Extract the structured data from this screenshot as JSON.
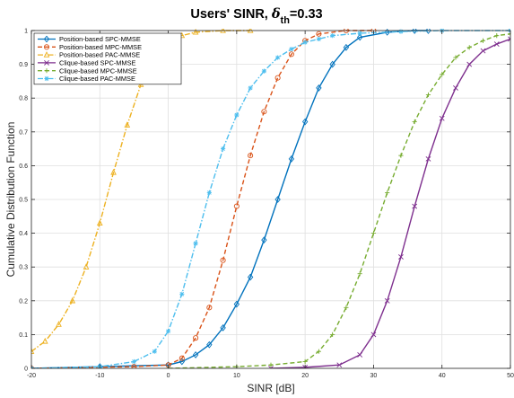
{
  "chart_data": {
    "type": "line",
    "title": {
      "main": "Users' SINR, ",
      "delta": "δ",
      "delta_sub": "th",
      "rest": "=0.33"
    },
    "xlabel": "SINR [dB]",
    "ylabel": "Cumulative Distribution Function",
    "xlim": [
      -20,
      50
    ],
    "ylim": [
      0,
      1
    ],
    "xticks": [
      -20,
      -10,
      0,
      10,
      20,
      30,
      40,
      50
    ],
    "yticks": [
      0,
      0.1,
      0.2,
      0.3,
      0.4,
      0.5,
      0.6,
      0.7,
      0.8,
      0.9,
      1
    ],
    "grid": true,
    "legend_position": "top-left",
    "series": [
      {
        "name": "Position-based SPC-MMSE",
        "color": "#0072BD",
        "dash": "solid",
        "marker": "diamond",
        "x": [
          -20,
          -10,
          0,
          2,
          4,
          6,
          8,
          10,
          12,
          14,
          16,
          18,
          20,
          22,
          24,
          26,
          28,
          32,
          36,
          38
        ],
        "y": [
          0.0,
          0.005,
          0.01,
          0.02,
          0.04,
          0.07,
          0.12,
          0.19,
          0.27,
          0.38,
          0.5,
          0.62,
          0.73,
          0.83,
          0.9,
          0.95,
          0.98,
          0.995,
          1.0,
          1.0
        ]
      },
      {
        "name": "Position-based MPC-MMSE",
        "color": "#D95319",
        "dash": "dash",
        "marker": "circle",
        "x": [
          -20,
          -5,
          0,
          2,
          4,
          6,
          8,
          10,
          12,
          14,
          16,
          18,
          20,
          22,
          26,
          30
        ],
        "y": [
          0.0,
          0.005,
          0.01,
          0.03,
          0.09,
          0.18,
          0.32,
          0.48,
          0.63,
          0.76,
          0.86,
          0.93,
          0.97,
          0.99,
          1.0,
          1.0
        ]
      },
      {
        "name": "Position-based PAC-MMSE",
        "color": "#EDB120",
        "dash": "dashdot",
        "marker": "triangle",
        "x": [
          -20,
          -18,
          -16,
          -14,
          -12,
          -10,
          -8,
          -6,
          -4,
          -2,
          0,
          2,
          4,
          8,
          12
        ],
        "y": [
          0.05,
          0.08,
          0.13,
          0.2,
          0.3,
          0.43,
          0.58,
          0.72,
          0.84,
          0.92,
          0.96,
          0.985,
          0.995,
          1.0,
          1.0
        ]
      },
      {
        "name": "Clique-based SPC-MMSE",
        "color": "#7E2F8E",
        "dash": "solid",
        "marker": "x",
        "x": [
          15,
          20,
          25,
          28,
          30,
          32,
          34,
          36,
          38,
          40,
          42,
          44,
          46,
          48,
          50
        ],
        "y": [
          0.0,
          0.003,
          0.01,
          0.04,
          0.1,
          0.2,
          0.33,
          0.48,
          0.62,
          0.74,
          0.83,
          0.9,
          0.94,
          0.96,
          0.975
        ]
      },
      {
        "name": "Clique-based MPC-MMSE",
        "color": "#77AC30",
        "dash": "dash",
        "marker": "plus",
        "x": [
          0,
          10,
          15,
          20,
          22,
          24,
          26,
          28,
          30,
          32,
          34,
          36,
          38,
          40,
          42,
          44,
          46,
          48,
          50
        ],
        "y": [
          0.0,
          0.005,
          0.01,
          0.02,
          0.05,
          0.1,
          0.18,
          0.28,
          0.4,
          0.52,
          0.63,
          0.73,
          0.81,
          0.87,
          0.92,
          0.95,
          0.97,
          0.985,
          0.99
        ]
      },
      {
        "name": "Clique-based PAC-MMSE",
        "color": "#4DBEEE",
        "dash": "dashdot",
        "marker": "asterisk",
        "x": [
          -20,
          -10,
          -5,
          -2,
          0,
          2,
          4,
          6,
          8,
          10,
          12,
          14,
          16,
          18,
          20,
          22,
          24,
          28,
          34,
          40,
          50
        ],
        "y": [
          0.0,
          0.005,
          0.02,
          0.05,
          0.11,
          0.22,
          0.37,
          0.52,
          0.65,
          0.75,
          0.83,
          0.88,
          0.92,
          0.945,
          0.965,
          0.975,
          0.985,
          0.992,
          0.997,
          1.0,
          1.0
        ]
      }
    ]
  }
}
